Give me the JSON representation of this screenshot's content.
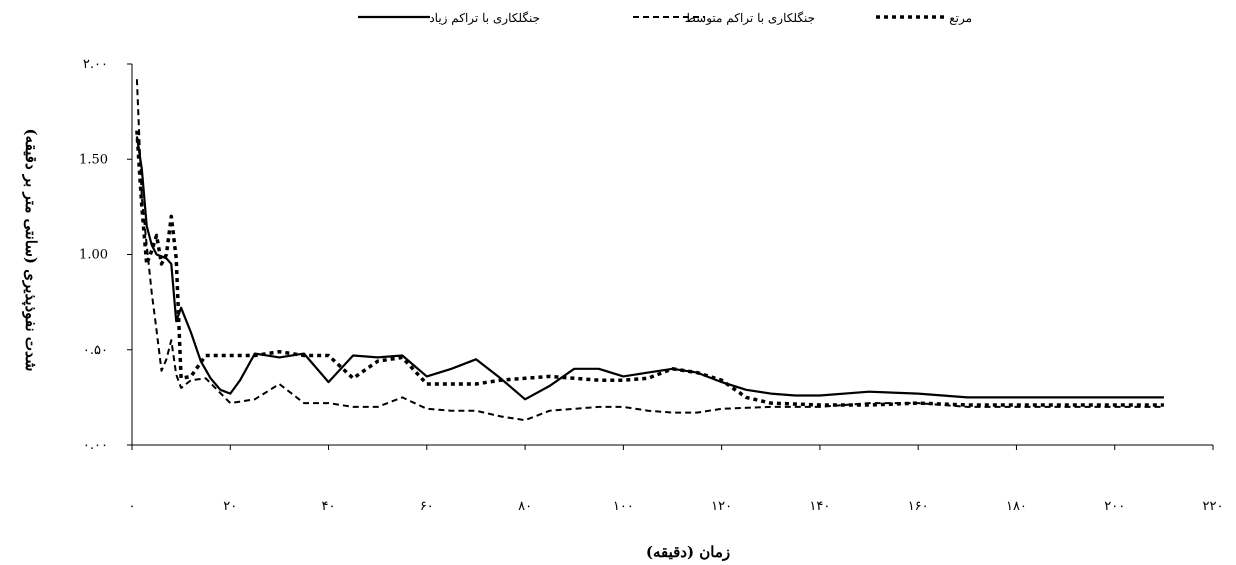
{
  "chart_data": {
    "type": "line",
    "title": "",
    "xlabel": "زمان (دقیقه)",
    "ylabel": "شدت نفوذپذیری (سانتی متر بر دقیقه)",
    "xlim": [
      0,
      220
    ],
    "ylim": [
      0,
      2
    ],
    "x_tick_labels": [
      "۰",
      "۲۰",
      "۴۰",
      "۶۰",
      "۸۰",
      "۱۰۰",
      "۱۲۰",
      "۱۴۰",
      "۱۶۰",
      "۱۸۰",
      "۲۰۰",
      "۲۲۰"
    ],
    "y_tick_labels": [
      "۰.۰۰",
      "۰.۵۰",
      "1.00",
      "1.50",
      "۲.۰۰"
    ],
    "legend_position": "top",
    "grid": false,
    "series": [
      {
        "name": "جنگلکاری با تراکم زیاد",
        "style": "solid",
        "x": [
          1,
          2,
          3,
          4,
          5,
          6,
          7,
          8,
          9,
          10,
          12,
          14,
          16,
          18,
          20,
          22,
          25,
          30,
          35,
          40,
          45,
          50,
          55,
          60,
          65,
          70,
          75,
          80,
          85,
          90,
          95,
          100,
          105,
          110,
          115,
          120,
          125,
          130,
          135,
          140,
          150,
          160,
          170,
          180,
          190,
          200,
          210
        ],
        "y": [
          1.62,
          1.45,
          1.15,
          1.05,
          1.0,
          0.99,
          0.98,
          0.95,
          0.65,
          0.72,
          0.59,
          0.44,
          0.35,
          0.29,
          0.27,
          0.34,
          0.48,
          0.46,
          0.48,
          0.33,
          0.47,
          0.46,
          0.47,
          0.36,
          0.4,
          0.45,
          0.35,
          0.24,
          0.31,
          0.4,
          0.4,
          0.36,
          0.38,
          0.4,
          0.38,
          0.33,
          0.29,
          0.27,
          0.26,
          0.26,
          0.28,
          0.27,
          0.25,
          0.25,
          0.25,
          0.25,
          0.25
        ]
      },
      {
        "name": "جنگلکاری با تراکم متوسط",
        "style": "dash",
        "x": [
          1,
          2,
          3,
          4,
          5,
          6,
          7,
          8,
          9,
          10,
          12,
          15,
          20,
          25,
          30,
          35,
          40,
          45,
          50,
          55,
          60,
          65,
          70,
          75,
          80,
          85,
          90,
          95,
          100,
          105,
          110,
          115,
          120,
          130,
          140,
          150,
          160,
          170,
          180,
          190,
          200,
          210
        ],
        "y": [
          1.92,
          1.3,
          1.05,
          0.8,
          0.6,
          0.39,
          0.45,
          0.55,
          0.37,
          0.3,
          0.34,
          0.35,
          0.22,
          0.24,
          0.32,
          0.22,
          0.22,
          0.2,
          0.2,
          0.25,
          0.19,
          0.18,
          0.18,
          0.15,
          0.13,
          0.18,
          0.19,
          0.2,
          0.2,
          0.18,
          0.17,
          0.17,
          0.19,
          0.2,
          0.2,
          0.22,
          0.22,
          0.2,
          0.2,
          0.2,
          0.2,
          0.2
        ]
      },
      {
        "name": "مرتع",
        "style": "dot",
        "x": [
          1,
          2,
          3,
          4,
          5,
          6,
          7,
          8,
          9,
          10,
          12,
          15,
          20,
          25,
          30,
          35,
          40,
          45,
          50,
          55,
          60,
          65,
          70,
          75,
          80,
          85,
          90,
          95,
          100,
          105,
          110,
          115,
          120,
          125,
          130,
          140,
          150,
          160,
          170,
          180,
          190,
          200,
          210
        ],
        "y": [
          1.65,
          1.25,
          0.95,
          1.02,
          1.1,
          0.95,
          1.0,
          1.2,
          0.98,
          0.35,
          0.36,
          0.47,
          0.47,
          0.47,
          0.49,
          0.47,
          0.47,
          0.35,
          0.44,
          0.46,
          0.32,
          0.32,
          0.32,
          0.34,
          0.35,
          0.36,
          0.35,
          0.34,
          0.34,
          0.35,
          0.4,
          0.38,
          0.34,
          0.25,
          0.22,
          0.21,
          0.21,
          0.22,
          0.21,
          0.21,
          0.21,
          0.21,
          0.21
        ]
      }
    ]
  }
}
